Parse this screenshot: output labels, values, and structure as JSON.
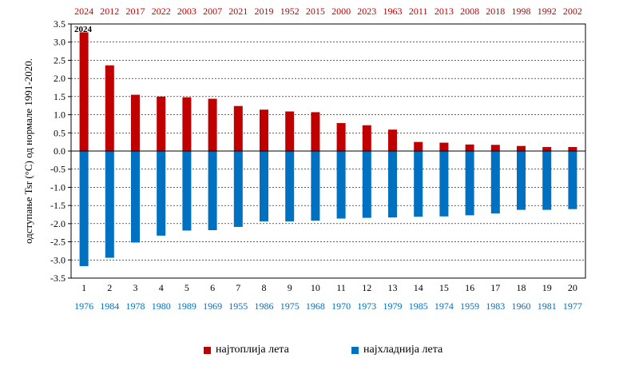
{
  "chart_data": {
    "type": "bar",
    "ylabel": "одступање Tsr (°C)  од  нормале 1991-2020.",
    "ylim": [
      -3.5,
      3.5
    ],
    "yticks": [
      3.5,
      3.0,
      2.5,
      2.0,
      1.5,
      1.0,
      0.5,
      0.0,
      -0.5,
      -1.0,
      -1.5,
      -2.0,
      -2.5,
      -3.0,
      -3.5
    ],
    "ytick_labels": [
      "3.5",
      "3.0",
      "2.5",
      "2.0",
      "1.5",
      "1.0",
      "0.5",
      "0.0",
      "-0.5",
      "-1.0",
      "-1.5",
      "-2.0",
      "-2.5",
      "-3.0",
      "-3.5"
    ],
    "categories": [
      "1",
      "2",
      "3",
      "4",
      "5",
      "6",
      "7",
      "8",
      "9",
      "10",
      "11",
      "12",
      "13",
      "14",
      "15",
      "16",
      "17",
      "18",
      "19",
      "20"
    ],
    "annotation": "2024",
    "series": [
      {
        "name": "најтоплија лета",
        "color": "#c00000",
        "years": [
          "2024",
          "2012",
          "2017",
          "2022",
          "2003",
          "2007",
          "2021",
          "2019",
          "1952",
          "2015",
          "2000",
          "2023",
          "1963",
          "2011",
          "2013",
          "2008",
          "2018",
          "1998",
          "1992",
          "2002"
        ],
        "values": [
          3.27,
          2.36,
          1.55,
          1.5,
          1.48,
          1.44,
          1.24,
          1.14,
          1.09,
          1.07,
          0.77,
          0.71,
          0.59,
          0.25,
          0.23,
          0.18,
          0.17,
          0.14,
          0.11,
          0.11
        ]
      },
      {
        "name": "најхладнија лета",
        "color": "#0070c0",
        "years": [
          "1976",
          "1984",
          "1978",
          "1980",
          "1989",
          "1969",
          "1955",
          "1986",
          "1975",
          "1968",
          "1970",
          "1973",
          "1979",
          "1985",
          "1974",
          "1959",
          "1983",
          "1960",
          "1981",
          "1977"
        ],
        "values": [
          -3.17,
          -2.94,
          -2.52,
          -2.33,
          -2.19,
          -2.18,
          -2.09,
          -1.94,
          -1.94,
          -1.92,
          -1.86,
          -1.84,
          -1.83,
          -1.81,
          -1.8,
          -1.77,
          -1.72,
          -1.62,
          -1.62,
          -1.6
        ]
      }
    ]
  }
}
